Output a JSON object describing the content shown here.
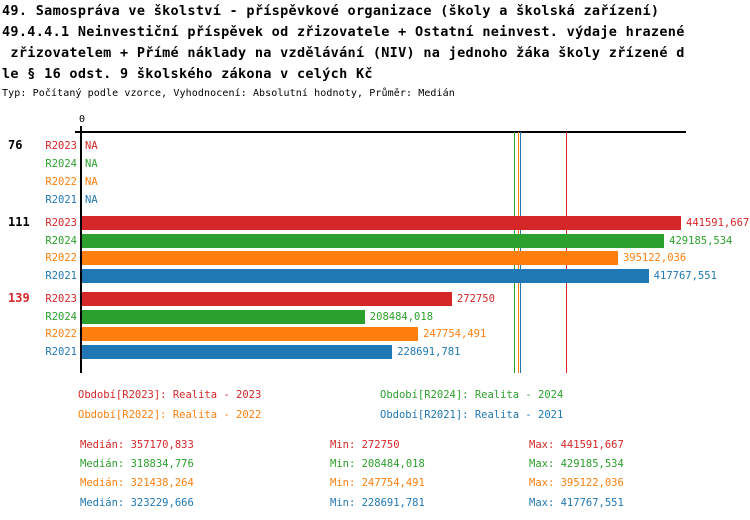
{
  "header": {
    "title_lines": [
      "49. Samospráva ve školství - příspěvkové organizace (školy a školská zařízení)",
      "49.4.4.1 Neinvestiční příspěvek od zřizovatele + Ostatní neinvest. výdaje hrazené",
      " zřizovatelem + Přímé náklady na vzdělávání (NIV) na jednoho žáka školy zřízené d",
      "le § 16 odst. 9 školského zákona v celých Kč"
    ],
    "subtitle": "Typ: Počítaný podle vzorce, Vyhodnocení: Absolutní hodnoty, Průměr: Medián"
  },
  "colors": {
    "R2023": "#d62728",
    "R2024": "#2ca02c",
    "R2022": "#ff7f0e",
    "R2021": "#1f77b4",
    "axis": "#000000",
    "group_139_label": "#d62728"
  },
  "chart_data": {
    "type": "bar",
    "orientation": "horizontal",
    "x_axis": {
      "origin_label": "0",
      "axis_min": 0,
      "axis_max": 441591.667,
      "grid": false
    },
    "series_order": [
      "R2023",
      "R2024",
      "R2022",
      "R2021"
    ],
    "groups": [
      {
        "label": "76",
        "label_color": "#000000",
        "bars": [
          {
            "period": "R2023",
            "value": null,
            "label": "NA"
          },
          {
            "period": "R2024",
            "value": null,
            "label": "NA"
          },
          {
            "period": "R2022",
            "value": null,
            "label": "NA"
          },
          {
            "period": "R2021",
            "value": null,
            "label": "NA"
          }
        ]
      },
      {
        "label": "111",
        "label_color": "#000000",
        "bars": [
          {
            "period": "R2023",
            "value": 441591.667,
            "label": "441591,667"
          },
          {
            "period": "R2024",
            "value": 429185.534,
            "label": "429185,534"
          },
          {
            "period": "R2022",
            "value": 395122.036,
            "label": "395122,036"
          },
          {
            "period": "R2021",
            "value": 417767.551,
            "label": "417767,551"
          }
        ]
      },
      {
        "label": "139",
        "label_color": "#d62728",
        "bars": [
          {
            "period": "R2023",
            "value": 272750,
            "label": "272750"
          },
          {
            "period": "R2024",
            "value": 208484.018,
            "label": "208484,018"
          },
          {
            "period": "R2022",
            "value": 247754.491,
            "label": "247754,491"
          },
          {
            "period": "R2021",
            "value": 228691.781,
            "label": "228691,781"
          }
        ]
      }
    ],
    "median_lines": [
      {
        "series": "R2024",
        "value": 318834.776
      },
      {
        "series": "R2022",
        "value": 321438.264
      },
      {
        "series": "R2021",
        "value": 323229.666
      },
      {
        "series": "R2023",
        "value": 357170.833
      }
    ],
    "legend": [
      {
        "series": "R2023",
        "label": "Období[R2023]: Realita - 2023"
      },
      {
        "series": "R2024",
        "label": "Období[R2024]: Realita - 2024"
      },
      {
        "series": "R2022",
        "label": "Období[R2022]: Realita - 2022"
      },
      {
        "series": "R2021",
        "label": "Období[R2021]: Realita - 2021"
      }
    ],
    "stats": [
      {
        "series": "R2023",
        "median": 357170.833,
        "min": 272750,
        "max": 441591.667,
        "cells": [
          "Medián: 357170,833",
          "Min: 272750",
          "Max: 441591,667"
        ]
      },
      {
        "series": "R2024",
        "median": 318834.776,
        "min": 208484.018,
        "max": 429185.534,
        "cells": [
          "Medián: 318834,776",
          "Min: 208484,018",
          "Max: 429185,534"
        ]
      },
      {
        "series": "R2022",
        "median": 321438.264,
        "min": 247754.491,
        "max": 395122.036,
        "cells": [
          "Medián: 321438,264",
          "Min: 247754,491",
          "Max: 395122,036"
        ]
      },
      {
        "series": "R2021",
        "median": 323229.666,
        "min": 228691.781,
        "max": 417767.551,
        "cells": [
          "Medián: 323229,666",
          "Min: 228691,781",
          "Max: 417767,551"
        ]
      }
    ]
  }
}
